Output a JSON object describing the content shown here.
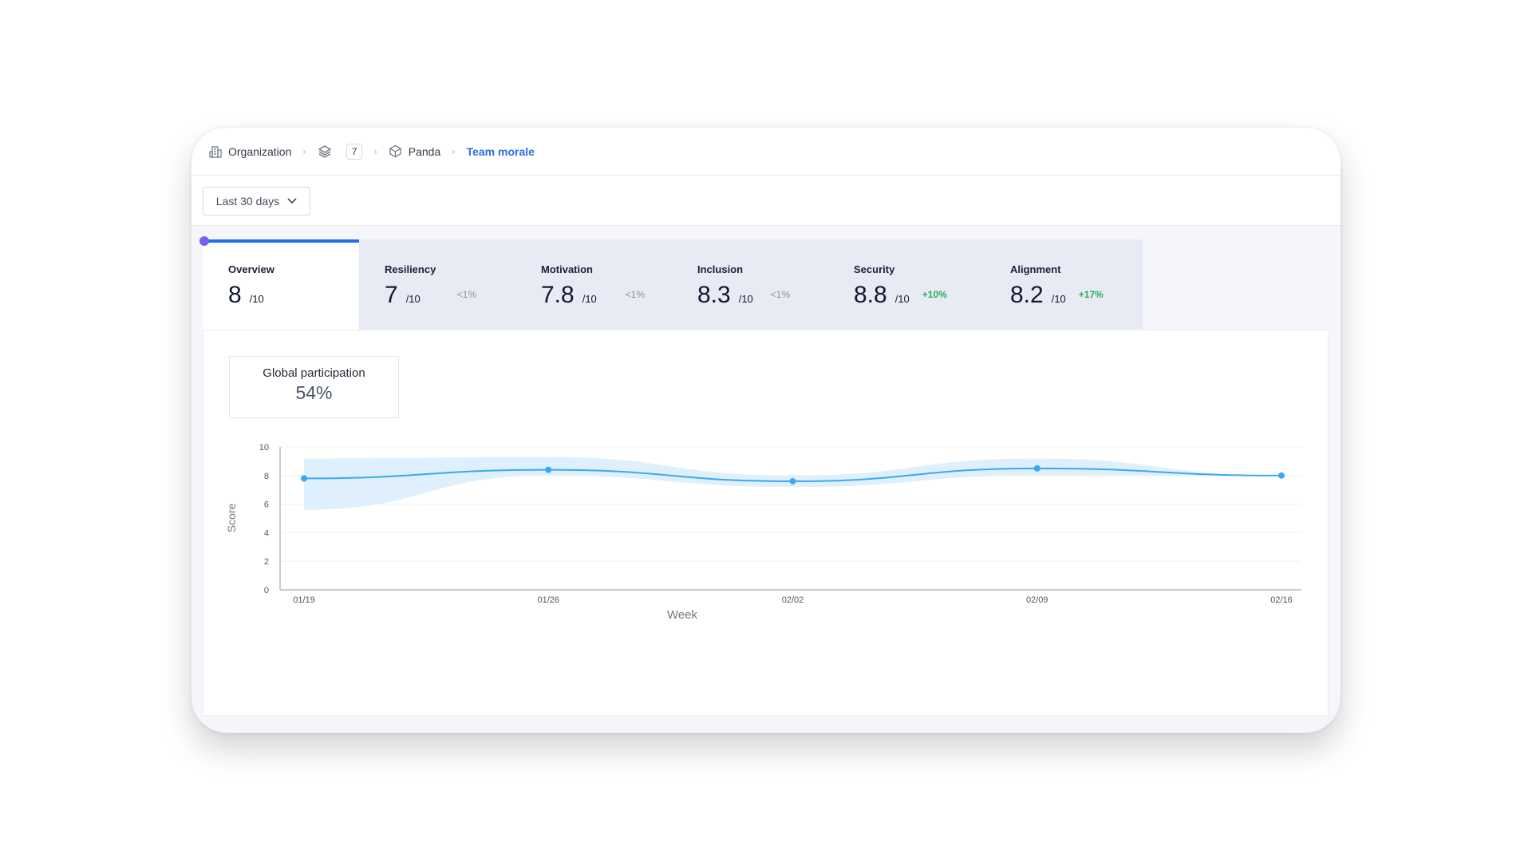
{
  "breadcrumb": {
    "organization": "Organization",
    "count": "7",
    "project": "Panda",
    "current": "Team morale"
  },
  "filter": {
    "period": "Last 30 days"
  },
  "tabs": [
    {
      "label": "Overview",
      "value": "8",
      "denominator": "/10",
      "change": ""
    },
    {
      "label": "Resiliency",
      "value": "7",
      "denominator": "/10",
      "change": "<1%"
    },
    {
      "label": "Motivation",
      "value": "7.8",
      "denominator": "/10",
      "change": "<1%"
    },
    {
      "label": "Inclusion",
      "value": "8.3",
      "denominator": "/10",
      "change": "<1%"
    },
    {
      "label": "Security",
      "value": "8.8",
      "denominator": "/10",
      "change": "+10%"
    },
    {
      "label": "Alignment",
      "value": "8.2",
      "denominator": "/10",
      "change": "+17%"
    }
  ],
  "participation": {
    "label": "Global participation",
    "value": "54%"
  },
  "colors": {
    "accent": "#1f6fe5",
    "line": "#3aa8f5",
    "band": "#dff0fc",
    "positive": "#2eaa5c"
  },
  "chart_data": {
    "type": "line",
    "xlabel": "Week",
    "ylabel": "Score",
    "categories": [
      "01/19",
      "01/26",
      "02/02",
      "02/09",
      "02/16"
    ],
    "series": [
      {
        "values": [
          7.8,
          8.4,
          7.6,
          8.5,
          8.0
        ]
      }
    ],
    "band": {
      "upper": [
        9.2,
        9.3,
        8.0,
        9.2,
        8.0
      ],
      "lower": [
        5.6,
        8.0,
        7.2,
        8.0,
        8.0
      ]
    },
    "ylim": [
      0,
      10
    ],
    "yticks": [
      0,
      2,
      4,
      6,
      8,
      10
    ],
    "grid": true
  }
}
